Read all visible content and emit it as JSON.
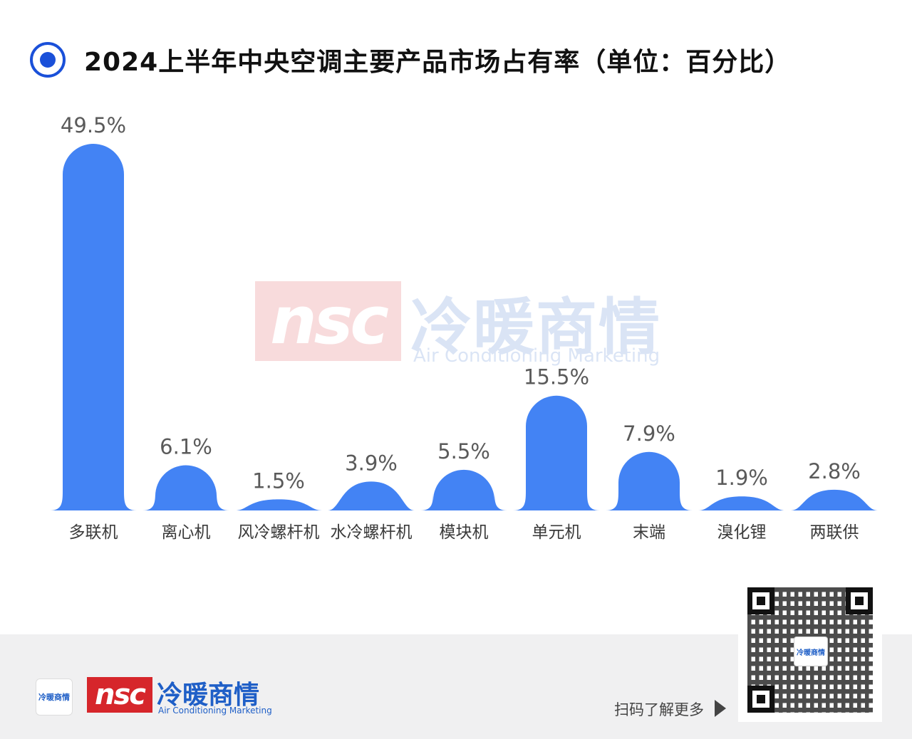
{
  "header": {
    "title": "2024上半年中央空调主要产品市场占有率（单位：百分比）"
  },
  "colors": {
    "bar": "#4383f4",
    "accent": "#1a50d9",
    "value_label": "#5a5a5a",
    "category_label": "#3a3a3a"
  },
  "chart_data": {
    "type": "bar",
    "title": "2024上半年中央空调主要产品市场占有率（单位：百分比）",
    "xlabel": "",
    "ylabel": "",
    "categories": [
      "多联机",
      "离心机",
      "风冷螺杆机",
      "水冷螺杆机",
      "模块机",
      "单元机",
      "末端",
      "溴化锂",
      "两联供"
    ],
    "values": [
      49.5,
      6.1,
      1.5,
      3.9,
      5.5,
      15.5,
      7.9,
      1.9,
      2.8
    ],
    "value_labels": [
      "49.5%",
      "6.1%",
      "1.5%",
      "3.9%",
      "5.5%",
      "15.5%",
      "7.9%",
      "1.9%",
      "2.8%"
    ],
    "grid": false,
    "legend": "none"
  },
  "watermark": {
    "logo": "nsc",
    "name": "冷暖商情",
    "tagline": "Air Conditioning Marketing"
  },
  "footer": {
    "badge": "冷暖商情",
    "logo": "nsc",
    "name": "冷暖商情",
    "tagline": "Air Conditioning Marketing",
    "scan_text": "扫码了解更多",
    "qr_center": "冷暖商情"
  }
}
